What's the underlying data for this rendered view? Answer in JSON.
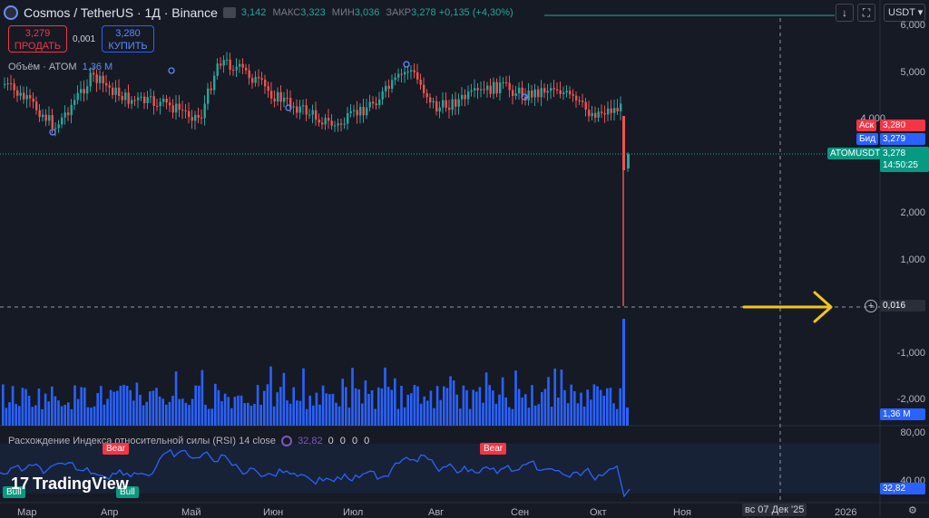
{
  "header": {
    "title": "Cosmos / TetherUS · 1Д · Binance",
    "ohlc": [
      {
        "label": "",
        "value": "3,142"
      },
      {
        "label": "МАКС",
        "value": "3,323"
      },
      {
        "label": "МИН",
        "value": "3,036"
      },
      {
        "label": "ЗАКР",
        "value": "3,278 +0,135 (+4,30%)"
      }
    ],
    "currency": "USDT"
  },
  "trade": {
    "sell_price": "3,279",
    "sell_label": "ПРОДАТЬ",
    "spread": "0,001",
    "buy_price": "3,280",
    "buy_label": "КУПИТЬ"
  },
  "volume_legend": {
    "label": "Объём · ATOM",
    "value": "1,36 M"
  },
  "rsi_legend": {
    "label": "Расхождение Индекса относительной силы (RSI) 14 close",
    "value": "32,82",
    "zeros": "0 0 0 0"
  },
  "price_axis": {
    "ticks": [
      "6,000",
      "5,000",
      "4,000",
      "2,000",
      "1,000",
      "-1,000",
      "-2,000"
    ],
    "ask_label": "Аск",
    "ask_value": "3,280",
    "bid_label": "Бид",
    "bid_value": "3,279",
    "symbol": "ATOMUSDT",
    "last_price": "3,278",
    "countdown": "14:50:25",
    "crosshair_value": "0,016",
    "volume_value": "1,36 M"
  },
  "rsi_axis": {
    "ticks": [
      "80,00",
      "40,00"
    ],
    "value": "32,82"
  },
  "time_axis": {
    "months": [
      "Мар",
      "Апр",
      "Май",
      "Июн",
      "Июл",
      "Авг",
      "Сен",
      "Окт",
      "Ноя",
      "2026"
    ],
    "crosshair_date": "вс 07 Дек '25"
  },
  "signals": {
    "bear": "Bear",
    "bull": "Bull"
  },
  "brand": "TradingView",
  "colors": {
    "up": "#26a69a",
    "down": "#ef5350",
    "volume": "#2962ff",
    "rsi": "#2962ff",
    "arrow": "#f5c518"
  }
}
